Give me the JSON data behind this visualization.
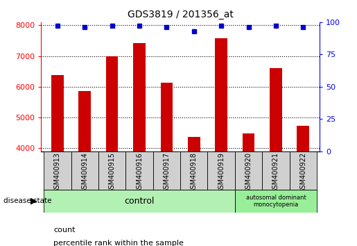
{
  "title": "GDS3819 / 201356_at",
  "samples": [
    "GSM400913",
    "GSM400914",
    "GSM400915",
    "GSM400916",
    "GSM400917",
    "GSM400918",
    "GSM400919",
    "GSM400920",
    "GSM400921",
    "GSM400922"
  ],
  "counts": [
    6380,
    5870,
    6980,
    7430,
    6120,
    4360,
    7580,
    4480,
    6610,
    4720
  ],
  "percentile_ranks": [
    97,
    96,
    97,
    97,
    96,
    93,
    97,
    96,
    97,
    96
  ],
  "ylim_left": [
    3900,
    8100
  ],
  "ylim_right": [
    0,
    100
  ],
  "yticks_left": [
    4000,
    5000,
    6000,
    7000,
    8000
  ],
  "yticks_right": [
    0,
    25,
    50,
    75,
    100
  ],
  "bar_color": "#cc0000",
  "dot_color": "#0000cc",
  "grid_color": "#000000",
  "control_color": "#b3f0b3",
  "disease_color": "#99ee99",
  "bg_color": "#ffffff",
  "control_samples": 7,
  "disease_label": "autosomal dominant\nmonocytopenia",
  "control_label": "control",
  "disease_state_label": "disease state",
  "legend_bar_label": "count",
  "legend_dot_label": "percentile rank within the sample",
  "bar_width": 0.45
}
